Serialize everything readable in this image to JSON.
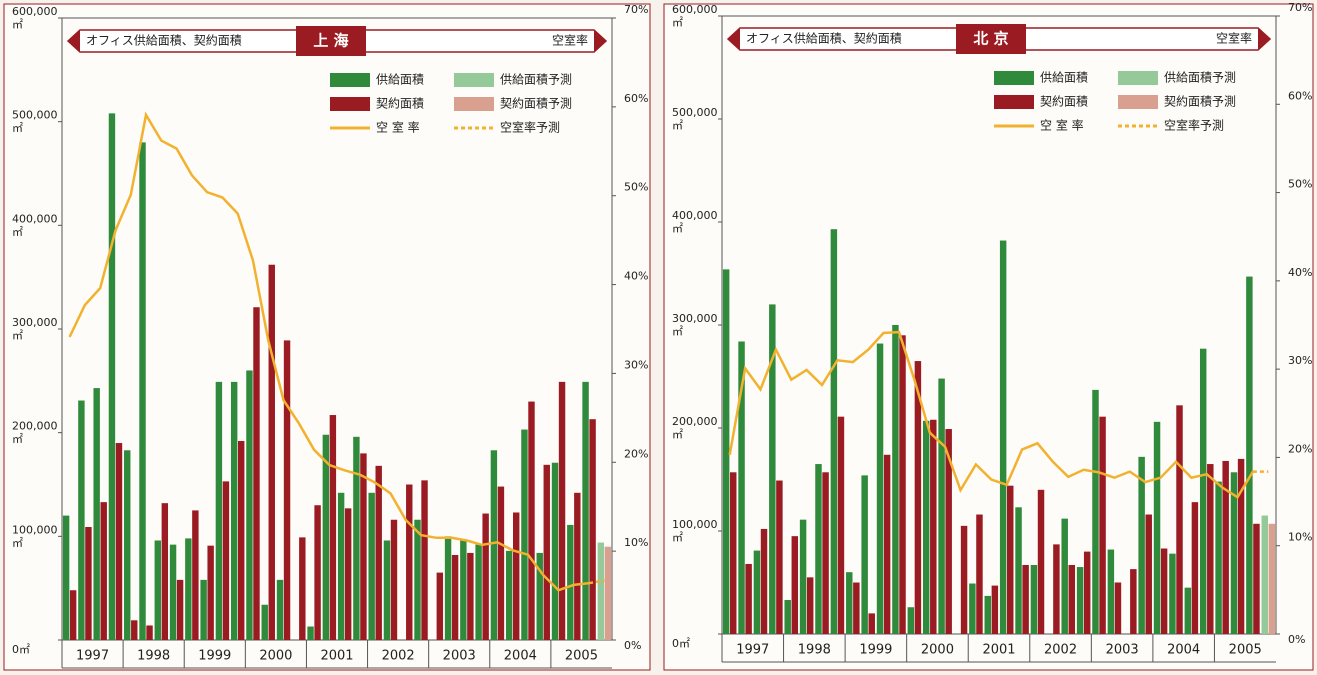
{
  "chart_data": [
    {
      "type": "bar",
      "banner": "オフィス供給面積、契約面積",
      "city": "上 海",
      "y2_label": "空室率",
      "years": [
        "1997",
        "1998",
        "1999",
        "2000",
        "2001",
        "2002",
        "2003",
        "2004",
        "2005"
      ],
      "ylim": [
        0,
        600000
      ],
      "yticks": [
        {
          "value": 0,
          "label": "0㎡"
        },
        {
          "value": 100000,
          "label": "100,000\n㎡"
        },
        {
          "value": 200000,
          "label": "200,000\n㎡"
        },
        {
          "value": 300000,
          "label": "300,000\n㎡"
        },
        {
          "value": 400000,
          "label": "400,000\n㎡"
        },
        {
          "value": 500000,
          "label": "500,000\n㎡"
        },
        {
          "value": 600000,
          "label": "600,000\n㎡"
        }
      ],
      "y2lim": [
        0,
        70
      ],
      "y2ticks": [
        {
          "value": 0,
          "label": "0%"
        },
        {
          "value": 10,
          "label": "10%"
        },
        {
          "value": 20,
          "label": "20%"
        },
        {
          "value": 30,
          "label": "30%"
        },
        {
          "value": 40,
          "label": "40%"
        },
        {
          "value": 50,
          "label": "50%"
        },
        {
          "value": 60,
          "label": "60%"
        },
        {
          "value": 70,
          "label": "70%"
        }
      ],
      "series": [
        {
          "name": "供給面積",
          "type": "bar",
          "color": "#2f8a3c",
          "values": [
            120000,
            231000,
            243000,
            508000,
            183000,
            480000,
            96000,
            92000,
            98000,
            58000,
            249000,
            249000,
            260000,
            34000,
            58000,
            0,
            13000,
            198000,
            142000,
            196000,
            142000,
            96000,
            0,
            116000,
            0,
            100000,
            96000,
            92000,
            183000,
            86000,
            203000,
            84000,
            171000,
            111000,
            249000,
            null
          ]
        },
        {
          "name": "契約面積",
          "type": "bar",
          "color": "#9a1c22",
          "values": [
            48000,
            109000,
            133000,
            190000,
            19000,
            14000,
            132000,
            58000,
            125000,
            91000,
            153000,
            192000,
            321000,
            362000,
            289000,
            99000,
            130000,
            217000,
            127000,
            180000,
            168000,
            116000,
            150000,
            154000,
            65000,
            82000,
            84000,
            122000,
            148000,
            123000,
            230000,
            169000,
            249000,
            142000,
            213000,
            null
          ]
        },
        {
          "name": "空 室 率",
          "type": "line",
          "axis": "y2",
          "color": "#f2b12e",
          "values": [
            34.1,
            37.7,
            39.6,
            46.1,
            50.1,
            59.1,
            56.2,
            55.3,
            52.3,
            50.4,
            49.8,
            48.0,
            42.7,
            33.7,
            27.0,
            24.4,
            21.4,
            19.7,
            19.1,
            18.6,
            17.7,
            16.5,
            13.5,
            11.8,
            11.5,
            11.5,
            11.2,
            10.7,
            11.0,
            10.1,
            9.6,
            7.3,
            5.6,
            6.2,
            6.4,
            null
          ]
        },
        {
          "name": "供給面積予測",
          "type": "bar",
          "color": "#96c99a",
          "values": [
            null,
            null,
            null,
            null,
            null,
            null,
            null,
            null,
            null,
            null,
            null,
            null,
            null,
            null,
            null,
            null,
            null,
            null,
            null,
            null,
            null,
            null,
            null,
            null,
            null,
            null,
            null,
            null,
            null,
            null,
            null,
            null,
            null,
            null,
            null,
            94000
          ]
        },
        {
          "name": "契約面積予測",
          "type": "bar",
          "color": "#d9a08f",
          "values": [
            null,
            null,
            null,
            null,
            null,
            null,
            null,
            null,
            null,
            null,
            null,
            null,
            null,
            null,
            null,
            null,
            null,
            null,
            null,
            null,
            null,
            null,
            null,
            null,
            null,
            null,
            null,
            null,
            null,
            null,
            null,
            null,
            null,
            null,
            null,
            90000
          ]
        },
        {
          "name": "空室率予測",
          "type": "line",
          "axis": "y2",
          "dashed": true,
          "color": "#f2b12e",
          "values": [
            null,
            null,
            null,
            null,
            null,
            null,
            null,
            null,
            null,
            null,
            null,
            null,
            null,
            null,
            null,
            null,
            null,
            null,
            null,
            null,
            null,
            null,
            null,
            null,
            null,
            null,
            null,
            null,
            null,
            null,
            null,
            null,
            null,
            null,
            6.4,
            6.7
          ]
        }
      ]
    },
    {
      "type": "bar",
      "banner": "オフィス供給面積、契約面積",
      "city": "北 京",
      "y2_label": "空室率",
      "years": [
        "1997",
        "1998",
        "1999",
        "2000",
        "2001",
        "2002",
        "2003",
        "2004",
        "2005"
      ],
      "ylim": [
        0,
        600000
      ],
      "yticks": [
        {
          "value": 0,
          "label": "0㎡"
        },
        {
          "value": 100000,
          "label": "100,000\n㎡"
        },
        {
          "value": 200000,
          "label": "200,000\n㎡"
        },
        {
          "value": 300000,
          "label": "300,000\n㎡"
        },
        {
          "value": 400000,
          "label": "400,000\n㎡"
        },
        {
          "value": 500000,
          "label": "500,000\n㎡"
        },
        {
          "value": 600000,
          "label": "600,000\n㎡"
        }
      ],
      "y2lim": [
        0,
        70
      ],
      "y2ticks": [
        {
          "value": 0,
          "label": "0%"
        },
        {
          "value": 10,
          "label": "10%"
        },
        {
          "value": 20,
          "label": "20%"
        },
        {
          "value": 30,
          "label": "30%"
        },
        {
          "value": 40,
          "label": "40%"
        },
        {
          "value": 50,
          "label": "50%"
        },
        {
          "value": 60,
          "label": "60%"
        },
        {
          "value": 70,
          "label": "70%"
        }
      ],
      "series": [
        {
          "name": "供給面積",
          "type": "bar",
          "color": "#2f8a3c",
          "values": [
            354000,
            284000,
            81000,
            320000,
            33000,
            111000,
            165000,
            393000,
            60000,
            154000,
            282000,
            300000,
            26000,
            207000,
            248000,
            0,
            49000,
            37000,
            382000,
            123000,
            67000,
            0,
            112000,
            65000,
            237000,
            82000,
            0,
            172000,
            206000,
            78000,
            45000,
            277000,
            148000,
            157000,
            347000,
            null
          ]
        },
        {
          "name": "契約面積",
          "type": "bar",
          "color": "#9a1c22",
          "values": [
            157000,
            68000,
            102000,
            149000,
            95000,
            55000,
            157000,
            211000,
            50000,
            20000,
            174000,
            290000,
            265000,
            208000,
            199000,
            105000,
            116000,
            47000,
            144000,
            67000,
            140000,
            87000,
            67000,
            80000,
            211000,
            50000,
            63000,
            116000,
            83000,
            222000,
            128000,
            165000,
            168000,
            170000,
            107000,
            null
          ]
        },
        {
          "name": "空 室 率",
          "type": "line",
          "axis": "y2",
          "color": "#f2b12e",
          "values": [
            20.3,
            30.1,
            27.7,
            32.2,
            28.8,
            29.9,
            28.2,
            31.0,
            30.8,
            32.2,
            34.1,
            34.2,
            28.8,
            22.8,
            21.2,
            16.3,
            19.2,
            17.5,
            16.9,
            20.9,
            21.6,
            19.5,
            17.8,
            18.6,
            18.3,
            17.7,
            18.4,
            17.2,
            17.7,
            19.5,
            17.7,
            18.1,
            16.6,
            15.5,
            18.4,
            null
          ]
        },
        {
          "name": "供給面積予測",
          "type": "bar",
          "color": "#96c99a",
          "values": [
            null,
            null,
            null,
            null,
            null,
            null,
            null,
            null,
            null,
            null,
            null,
            null,
            null,
            null,
            null,
            null,
            null,
            null,
            null,
            null,
            null,
            null,
            null,
            null,
            null,
            null,
            null,
            null,
            null,
            null,
            null,
            null,
            null,
            null,
            null,
            115000
          ]
        },
        {
          "name": "契約面積予測",
          "type": "bar",
          "color": "#d9a08f",
          "values": [
            null,
            null,
            null,
            null,
            null,
            null,
            null,
            null,
            null,
            null,
            null,
            null,
            null,
            null,
            null,
            null,
            null,
            null,
            null,
            null,
            null,
            null,
            null,
            null,
            null,
            null,
            null,
            null,
            null,
            null,
            null,
            null,
            null,
            null,
            null,
            107000
          ]
        },
        {
          "name": "空室率予測",
          "type": "line",
          "axis": "y2",
          "dashed": true,
          "color": "#f2b12e",
          "values": [
            null,
            null,
            null,
            null,
            null,
            null,
            null,
            null,
            null,
            null,
            null,
            null,
            null,
            null,
            null,
            null,
            null,
            null,
            null,
            null,
            null,
            null,
            null,
            null,
            null,
            null,
            null,
            null,
            null,
            null,
            null,
            null,
            null,
            null,
            18.4,
            18.4
          ]
        }
      ]
    }
  ]
}
